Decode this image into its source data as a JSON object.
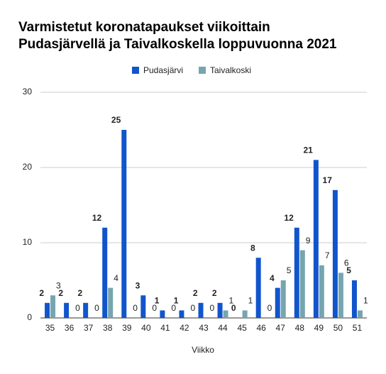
{
  "chart_data": {
    "type": "bar",
    "title": [
      "Varmistetut koronatapaukset viikoittain",
      "Pudasjärvellä ja Taivalkoskella loppuvuonna 2021"
    ],
    "x_label": "Viikko",
    "categories": [
      "35",
      "36",
      "37",
      "38",
      "39",
      "40",
      "41",
      "42",
      "43",
      "44",
      "45",
      "46",
      "47",
      "48",
      "49",
      "50",
      "51"
    ],
    "series": [
      {
        "name": "Pudasjärvi",
        "color": "#1155cc",
        "values": [
          2,
          2,
          2,
          12,
          25,
          3,
          1,
          1,
          2,
          2,
          0,
          8,
          4,
          12,
          21,
          17,
          5
        ]
      },
      {
        "name": "Taivalkoski",
        "color": "#76a5af",
        "values": [
          3,
          0,
          0,
          4,
          0,
          0,
          0,
          0,
          0,
          1,
          1,
          0,
          5,
          9,
          7,
          6,
          1
        ]
      }
    ],
    "ylim": [
      0,
      30
    ],
    "yticks": [
      0,
      10,
      20,
      30
    ],
    "grid": true,
    "legend": "top"
  }
}
